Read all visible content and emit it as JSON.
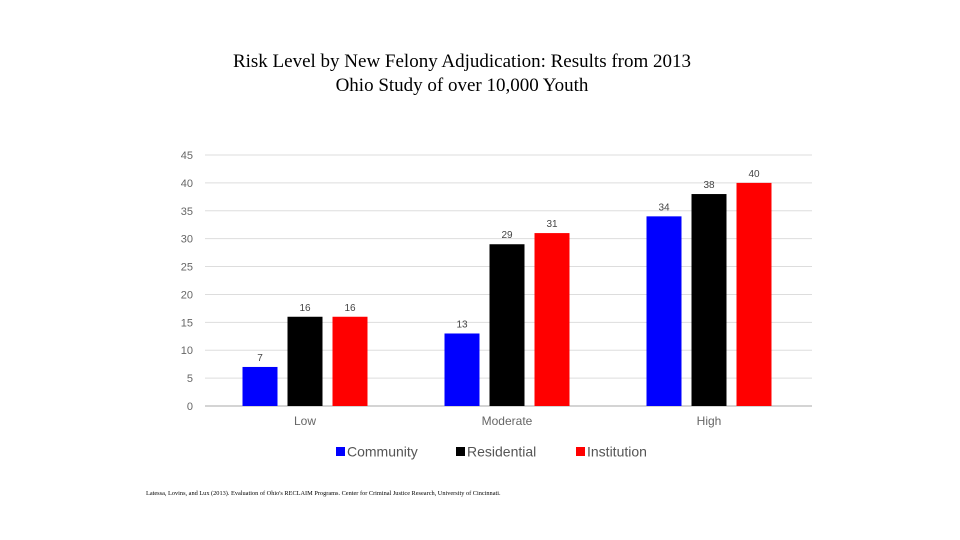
{
  "title_line1": "Risk Level by New Felony Adjudication: Results from 2013",
  "title_line2": "Ohio Study of over 10,000 Youth",
  "source": "Latessa, Lovins, and Lux (2013). Evaluation of Ohio's RECLAIM Programs. Center for Criminal Justice Research, University of Cincinnati.",
  "chart_data": {
    "type": "bar",
    "title": "Risk Level by New Felony Adjudication: Results from 2013 Ohio Study of over 10,000 Youth",
    "categories": [
      "Low",
      "Moderate",
      "High"
    ],
    "series": [
      {
        "name": "Community",
        "color": "#0000ff",
        "values": [
          7,
          13,
          34
        ]
      },
      {
        "name": "Residential",
        "color": "#000000",
        "values": [
          16,
          29,
          38
        ]
      },
      {
        "name": "Institution",
        "color": "#ff0000",
        "values": [
          16,
          31,
          40
        ]
      }
    ],
    "yticks": [
      "0",
      "5",
      "10",
      "15",
      "20",
      "25",
      "30",
      "35",
      "40",
      "45"
    ],
    "ylim": [
      0,
      45
    ],
    "xlabel": "",
    "ylabel": "",
    "grid": true,
    "legend": "bottom"
  }
}
